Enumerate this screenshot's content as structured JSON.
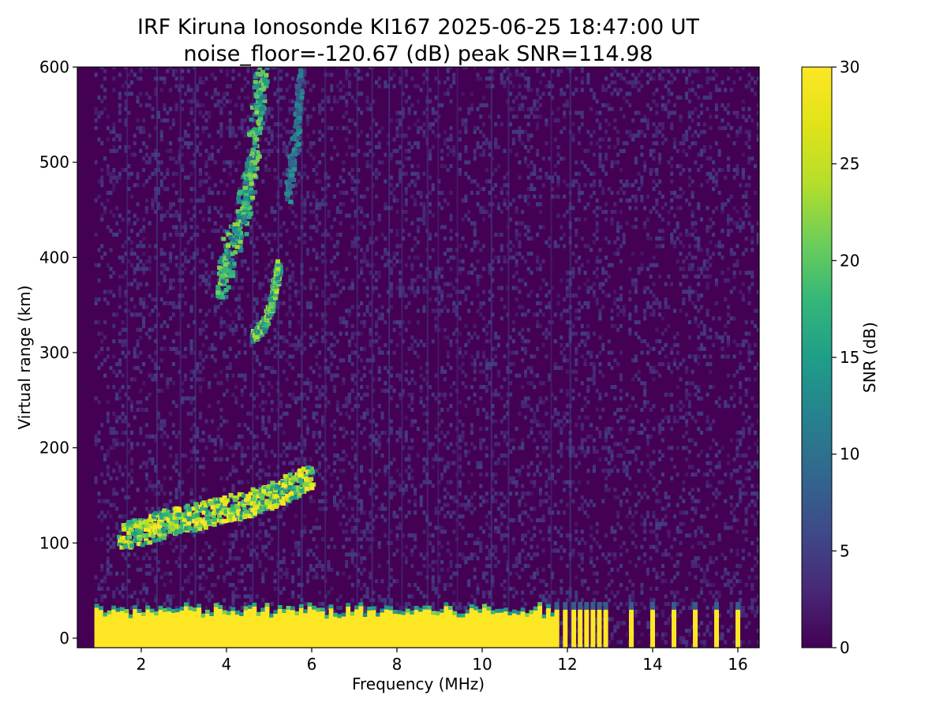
{
  "chart_data": {
    "type": "heatmap",
    "title": "IRF Kiruna Ionosonde KI167 2025-06-25 18:47:00  UT",
    "subtitle": "noise_floor=-120.67 (dB) peak SNR=114.98",
    "xlabel": "Frequency (MHz)",
    "ylabel": "Virtual range (km)",
    "xlim": [
      0.5,
      16.5
    ],
    "ylim": [
      -10,
      600
    ],
    "x_ticks": [
      2,
      4,
      6,
      8,
      10,
      12,
      14,
      16
    ],
    "y_ticks": [
      0,
      100,
      200,
      300,
      400,
      500,
      600
    ],
    "colorbar": {
      "label": "SNR (dB)",
      "colormap": "viridis",
      "range": [
        0,
        30
      ],
      "ticks": [
        0,
        5,
        10,
        15,
        20,
        25,
        30
      ]
    },
    "features": [
      {
        "kind": "ground_clutter",
        "x_range": [
          0.9,
          11.7
        ],
        "y_range": [
          -10,
          30
        ],
        "snr": 30
      },
      {
        "kind": "discrete_channels",
        "x": [
          11.75,
          11.95,
          12.15,
          12.3,
          12.45,
          12.6,
          12.75,
          12.9,
          13.5,
          14.0,
          14.5,
          15.0,
          15.5,
          16.0
        ],
        "y_range": [
          -10,
          30
        ],
        "snr": 30
      },
      {
        "kind": "E_F_trace",
        "points": [
          [
            1.5,
            105
          ],
          [
            2.0,
            110
          ],
          [
            2.5,
            118
          ],
          [
            3.0,
            124
          ],
          [
            3.5,
            128
          ],
          [
            4.0,
            134
          ],
          [
            4.5,
            140
          ],
          [
            5.0,
            148
          ],
          [
            5.5,
            158
          ],
          [
            6.0,
            168
          ]
        ],
        "snr": 30
      },
      {
        "kind": "F_trace_diffuse",
        "points": [
          [
            3.8,
            370
          ],
          [
            4.0,
            400
          ],
          [
            4.3,
            440
          ],
          [
            4.5,
            480
          ],
          [
            4.7,
            550
          ],
          [
            4.8,
            600
          ]
        ],
        "snr": 22
      },
      {
        "kind": "F_trace_second",
        "points": [
          [
            4.6,
            315
          ],
          [
            4.8,
            325
          ],
          [
            5.0,
            345
          ],
          [
            5.1,
            370
          ],
          [
            5.2,
            390
          ]
        ],
        "snr": 24
      },
      {
        "kind": "F_trace_upper",
        "points": [
          [
            5.4,
            470
          ],
          [
            5.6,
            530
          ],
          [
            5.7,
            600
          ]
        ],
        "snr": 14
      }
    ]
  }
}
